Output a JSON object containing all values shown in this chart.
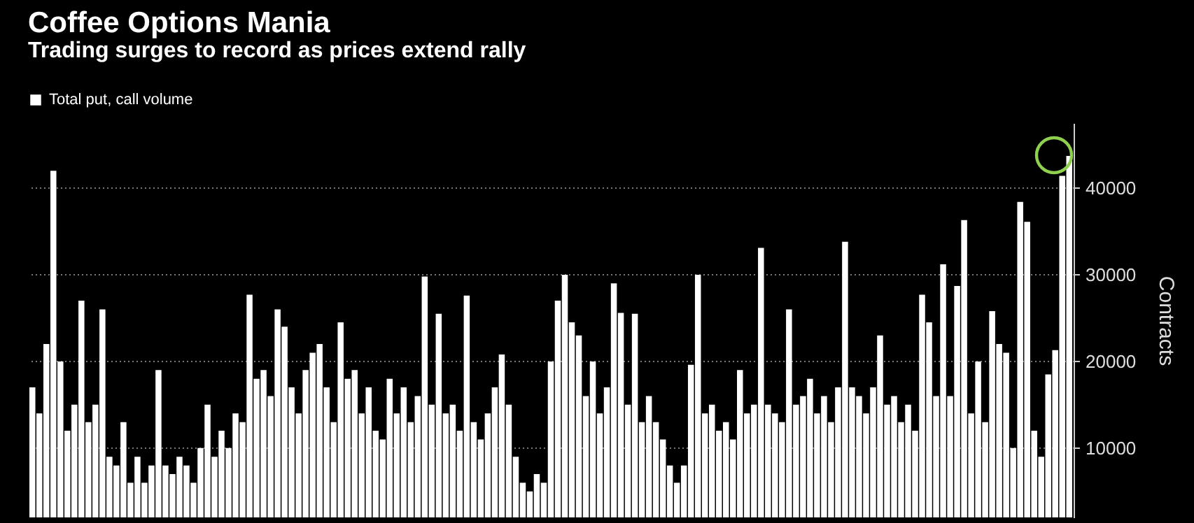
{
  "chart_data": {
    "type": "bar",
    "title": "Coffee Options Mania",
    "subtitle": "Trading surges to record as prices extend rally",
    "ylabel": "Contracts",
    "categories": [
      null,
      null,
      null,
      null,
      null,
      null,
      null,
      null,
      null,
      null,
      null,
      null,
      null,
      null,
      null,
      null,
      null,
      null,
      null,
      null,
      null,
      null,
      null,
      null,
      null,
      null,
      null,
      null,
      null,
      null,
      null,
      null,
      null,
      null,
      null,
      null,
      null,
      null,
      null,
      null,
      null,
      null,
      null,
      null,
      null,
      null,
      null,
      null,
      null,
      null,
      null,
      null,
      null,
      null,
      null,
      null,
      null,
      null,
      null,
      null,
      null,
      null,
      null,
      null,
      null,
      null,
      null,
      null,
      null,
      null,
      null,
      null,
      null,
      null,
      null,
      null,
      null,
      null,
      null,
      null,
      null,
      null,
      null,
      null,
      null,
      null,
      null,
      null,
      null,
      null,
      null,
      null,
      null,
      null,
      null,
      null,
      null,
      null,
      null,
      null,
      null,
      null,
      null,
      null,
      null,
      null,
      null,
      null,
      null,
      null,
      null,
      null,
      null,
      null,
      null,
      null,
      null,
      null,
      null,
      null,
      null,
      null,
      null,
      null,
      null,
      null,
      null,
      null,
      null,
      null,
      null,
      null,
      null,
      null,
      null,
      null,
      null,
      null,
      null,
      null,
      null,
      null,
      null,
      null,
      null,
      null,
      null,
      null,
      null
    ],
    "series": [
      {
        "name": "Total put, call volume",
        "color": "#ffffff",
        "values": [
          17000,
          14000,
          22000,
          42000,
          20000,
          12000,
          15000,
          27000,
          13000,
          15000,
          26000,
          9000,
          8000,
          13000,
          6000,
          9000,
          6000,
          8000,
          19000,
          8000,
          7000,
          9000,
          8000,
          6000,
          10000,
          15000,
          9000,
          12000,
          10000,
          14000,
          13000,
          27700,
          18000,
          19000,
          16000,
          26000,
          24000,
          17000,
          14000,
          19000,
          21000,
          22000,
          17000,
          13000,
          24500,
          18000,
          19000,
          14000,
          17000,
          12000,
          11000,
          18000,
          14000,
          17000,
          13000,
          16000,
          29800,
          15000,
          25500,
          14000,
          15000,
          12000,
          27600,
          13000,
          11000,
          14000,
          17000,
          20800,
          15000,
          9000,
          6000,
          5000,
          7000,
          6000,
          20000,
          27000,
          30000,
          24500,
          23000,
          16000,
          20000,
          14000,
          17000,
          29000,
          25600,
          15000,
          25500,
          13000,
          16000,
          13000,
          11000,
          8000,
          6000,
          8000,
          19600,
          30000,
          14000,
          15000,
          12000,
          13000,
          11000,
          19000,
          14000,
          15000,
          33100,
          15000,
          14000,
          13000,
          26000,
          15000,
          16000,
          18000,
          14000,
          16000,
          13000,
          17000,
          33800,
          17000,
          16000,
          14000,
          17000,
          23000,
          15000,
          16000,
          13000,
          15000,
          12000,
          27700,
          24500,
          16000,
          31200,
          16000,
          28700,
          36300,
          14000,
          20000,
          13000,
          25800,
          22000,
          21000,
          10000,
          38400,
          36100,
          12000,
          9000,
          18500,
          21300,
          41400,
          43700
        ]
      }
    ],
    "ylim": [
      2000,
      47500
    ],
    "yticks": [
      10000,
      20000,
      30000,
      40000
    ],
    "grid": "y",
    "legend": "top left",
    "tick_labels": "y"
  }
}
